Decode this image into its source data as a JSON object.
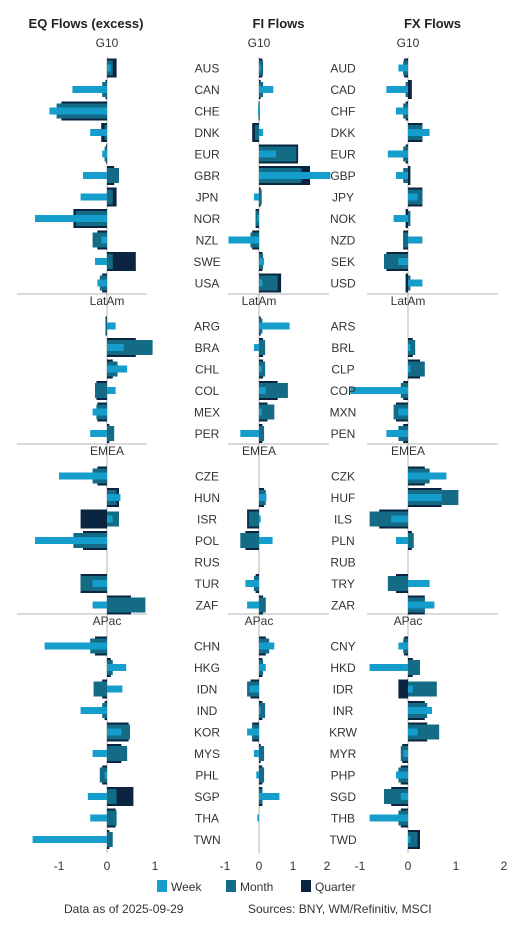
{
  "titles": [
    "EQ Flows (excess)",
    "FI Flows",
    "FX Flows"
  ],
  "regions": [
    "G10",
    "LatAm",
    "EMEA",
    "APac"
  ],
  "legend": [
    "Week",
    "Month",
    "Quarter"
  ],
  "colors": {
    "Week": "#159ecb",
    "Month": "#136b85",
    "Quarter": "#0b2541",
    "axis": "#b5b5b5",
    "text": "#333333"
  },
  "footer": {
    "date": "Data as of 2025-09-29",
    "sources": "Sources:  BNY, WM/Refinitiv, MSCI"
  },
  "chart_data": [
    {
      "type": "bar",
      "title": "EQ Flows (excess)",
      "orientation": "horizontal",
      "xlim": [
        -1.2,
        1.2
      ],
      "xticks": [
        -1,
        0,
        1
      ],
      "groups": [
        {
          "name": "G10",
          "categories": [
            "AUS",
            "CAN",
            "CHE",
            "DNK",
            "EUR",
            "GBR",
            "JPN",
            "NOR",
            "NZL",
            "SWE",
            "USA"
          ],
          "series": [
            {
              "name": "Week",
              "values": [
                0.08,
                -0.72,
                -1.2,
                -0.35,
                -0.1,
                -0.5,
                -0.55,
                -1.5,
                -0.12,
                -0.25,
                -0.2
              ]
            },
            {
              "name": "Month",
              "values": [
                0.12,
                -0.1,
                -1.05,
                -0.05,
                -0.05,
                0.25,
                0.12,
                -0.65,
                -0.3,
                0.12,
                -0.15
              ]
            },
            {
              "name": "Quarter",
              "values": [
                0.2,
                -0.03,
                -0.95,
                -0.12,
                -0.02,
                0.15,
                0.2,
                -0.7,
                -0.2,
                0.6,
                -0.1
              ]
            }
          ]
        },
        {
          "name": "LatAm",
          "categories": [
            "ARG",
            "BRA",
            "CHL",
            "COL",
            "MEX",
            "PER"
          ],
          "series": [
            {
              "name": "Week",
              "values": [
                0.18,
                0.35,
                0.42,
                0.18,
                -0.3,
                -0.35
              ]
            },
            {
              "name": "Month",
              "values": [
                -0.02,
                0.95,
                0.22,
                -0.25,
                -0.22,
                0.15
              ]
            },
            {
              "name": "Quarter",
              "values": [
                -0.03,
                0.6,
                0.12,
                -0.22,
                -0.2,
                0.05
              ]
            }
          ]
        },
        {
          "name": "EMEA",
          "categories": [
            "CZE",
            "HUN",
            "ISR",
            "POL",
            "RUS",
            "TUR",
            "ZAF"
          ],
          "series": [
            {
              "name": "Week",
              "values": [
                -1.0,
                0.28,
                0.12,
                -1.5,
                0,
                -0.3,
                -0.3
              ]
            },
            {
              "name": "Month",
              "values": [
                -0.3,
                0.2,
                0.25,
                -0.7,
                0,
                -0.55,
                0.8
              ]
            },
            {
              "name": "Quarter",
              "values": [
                -0.2,
                0.25,
                -0.55,
                -0.5,
                0,
                -0.55,
                0.5
              ]
            }
          ]
        },
        {
          "name": "APac",
          "categories": [
            "CHN",
            "HKG",
            "IDN",
            "IND",
            "KOR",
            "MYS",
            "PHL",
            "SGP",
            "THA",
            "TWN"
          ],
          "series": [
            {
              "name": "Week",
              "values": [
                -1.3,
                0.4,
                0.32,
                -0.55,
                0.3,
                -0.3,
                -0.05,
                -0.4,
                -0.35,
                -1.55
              ]
            },
            {
              "name": "Month",
              "values": [
                -0.35,
                0.12,
                -0.28,
                -0.1,
                0.48,
                0.42,
                -0.15,
                0.2,
                0.2,
                0.12
              ]
            },
            {
              "name": "Quarter",
              "values": [
                -0.25,
                0.08,
                -0.1,
                -0.05,
                0.45,
                0.3,
                -0.1,
                0.55,
                0.18,
                0.05
              ]
            }
          ]
        }
      ]
    },
    {
      "type": "bar",
      "title": "FI Flows",
      "orientation": "horizontal",
      "xlim": [
        -1.05,
        2.0
      ],
      "xticks": [
        -1,
        0,
        1,
        2
      ],
      "groups": [
        {
          "name": "G10",
          "categories": [
            "AUS",
            "CAN",
            "CHE",
            "DNK",
            "EUR",
            "GBR",
            "JPN",
            "NOR",
            "NZL",
            "SWE",
            "USA"
          ],
          "series": [
            {
              "name": "Week",
              "values": [
                0.05,
                0.42,
                -0.03,
                0.12,
                0.5,
                2.1,
                -0.15,
                -0.05,
                -0.9,
                0.15,
                0.1
              ]
            },
            {
              "name": "Month",
              "values": [
                0.12,
                0.12,
                -0.02,
                -0.12,
                1.1,
                1.25,
                0.08,
                -0.1,
                -0.25,
                0.12,
                0.55
              ]
            },
            {
              "name": "Quarter",
              "values": [
                0.1,
                0.05,
                -0.01,
                -0.2,
                1.15,
                1.5,
                0.05,
                -0.1,
                -0.2,
                0.1,
                0.65
              ]
            }
          ]
        },
        {
          "name": "LatAm",
          "categories": [
            "ARG",
            "BRA",
            "CHL",
            "COL",
            "MEX",
            "PER"
          ],
          "series": [
            {
              "name": "Week",
              "values": [
                0.9,
                -0.15,
                0.08,
                0.2,
                0.08,
                -0.55
              ]
            },
            {
              "name": "Month",
              "values": [
                0.1,
                0.18,
                0.18,
                0.85,
                0.45,
                0.15
              ]
            },
            {
              "name": "Quarter",
              "values": [
                0.05,
                0.12,
                0.12,
                0.55,
                0.25,
                0.1
              ]
            }
          ]
        },
        {
          "name": "EMEA",
          "categories": [
            "CZE",
            "HUN",
            "ISR",
            "POL",
            "RUS",
            "TUR",
            "ZAF"
          ],
          "series": [
            {
              "name": "Week",
              "values": [
                0,
                0.22,
                0.05,
                0.4,
                0,
                -0.4,
                -0.35
              ]
            },
            {
              "name": "Month",
              "values": [
                0,
                0.2,
                -0.3,
                -0.55,
                0,
                -0.15,
                0.2
              ]
            },
            {
              "name": "Quarter",
              "values": [
                0,
                0.15,
                -0.35,
                -0.4,
                0,
                -0.1,
                0.12
              ]
            }
          ]
        },
        {
          "name": "APac",
          "categories": [
            "CHN",
            "HKG",
            "IDN",
            "IND",
            "KOR",
            "MYS",
            "PHL",
            "SGP",
            "THA",
            "TWN"
          ],
          "series": [
            {
              "name": "Week",
              "values": [
                0.45,
                0.2,
                -0.28,
                0.05,
                -0.35,
                -0.15,
                -0.08,
                0.6,
                -0.05,
                0
              ]
            },
            {
              "name": "Month",
              "values": [
                0.3,
                0.12,
                -0.35,
                0.18,
                -0.2,
                0.15,
                0.15,
                0.1,
                0,
                0
              ]
            },
            {
              "name": "Quarter",
              "values": [
                0.2,
                0.1,
                -0.25,
                0.1,
                -0.2,
                0.05,
                0.1,
                0.1,
                0,
                0
              ]
            }
          ]
        }
      ]
    },
    {
      "type": "bar",
      "title": "FX Flows",
      "orientation": "horizontal",
      "xlim": [
        -1.05,
        2.0
      ],
      "xticks": [
        -1,
        0,
        1,
        2
      ],
      "groups": [
        {
          "name": "G10",
          "categories": [
            "AUD",
            "CAD",
            "CHF",
            "DKK",
            "EUR",
            "GBP",
            "JPY",
            "NOK",
            "NZD",
            "SEK",
            "USD"
          ],
          "series": [
            {
              "name": "Week",
              "values": [
                -0.2,
                -0.45,
                -0.25,
                0.45,
                -0.42,
                -0.25,
                0.2,
                -0.3,
                0.3,
                -0.2,
                0.3
              ]
            },
            {
              "name": "Month",
              "values": [
                -0.1,
                -0.05,
                -0.1,
                0.3,
                -0.1,
                -0.1,
                0.3,
                0.05,
                -0.1,
                -0.5,
                0.05
              ]
            },
            {
              "name": "Quarter",
              "values": [
                -0.08,
                0.08,
                -0.05,
                0.3,
                -0.05,
                0.05,
                0.3,
                -0.05,
                -0.1,
                -0.45,
                -0.05
              ]
            }
          ]
        },
        {
          "name": "LatAm",
          "categories": [
            "ARS",
            "BRL",
            "CLP",
            "COP",
            "MXN",
            "PEN"
          ],
          "series": [
            {
              "name": "Week",
              "values": [
                0,
                0.05,
                0.05,
                -1.2,
                -0.2,
                -0.45
              ]
            },
            {
              "name": "Month",
              "values": [
                0,
                0.15,
                0.35,
                -0.15,
                -0.3,
                -0.2
              ]
            },
            {
              "name": "Quarter",
              "values": [
                0,
                0.1,
                0.25,
                -0.1,
                -0.25,
                -0.1
              ]
            }
          ]
        },
        {
          "name": "EMEA",
          "categories": [
            "CZK",
            "HUF",
            "ILS",
            "PLN",
            "RUB",
            "TRY",
            "ZAR"
          ],
          "series": [
            {
              "name": "Week",
              "values": [
                0.8,
                0.7,
                -0.35,
                -0.25,
                0,
                0.45,
                0.55
              ]
            },
            {
              "name": "Month",
              "values": [
                0.45,
                1.05,
                -0.8,
                0.12,
                0,
                -0.42,
                0.35
              ]
            },
            {
              "name": "Quarter",
              "values": [
                0.35,
                0.7,
                -0.6,
                0.08,
                0,
                -0.25,
                0.35
              ]
            }
          ]
        },
        {
          "name": "APac",
          "categories": [
            "CNY",
            "HKD",
            "IDR",
            "INR",
            "KRW",
            "MYR",
            "PHP",
            "SGD",
            "THB",
            "TWD"
          ],
          "series": [
            {
              "name": "Week",
              "values": [
                -0.2,
                -0.8,
                0.1,
                0.5,
                0.2,
                -0.1,
                -0.25,
                -0.15,
                -0.8,
                0.05
              ]
            },
            {
              "name": "Month",
              "values": [
                -0.1,
                0.25,
                0.6,
                0.4,
                0.65,
                -0.15,
                -0.2,
                -0.5,
                -0.2,
                0.2
              ]
            },
            {
              "name": "Quarter",
              "values": [
                -0.08,
                0.1,
                -0.2,
                0.35,
                0.4,
                -0.12,
                -0.15,
                -0.35,
                -0.15,
                0.25
              ]
            }
          ]
        }
      ]
    }
  ]
}
